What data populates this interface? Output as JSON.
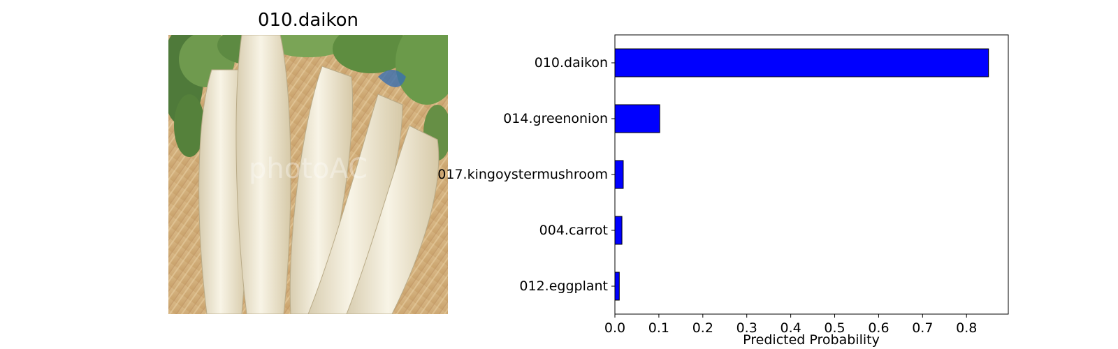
{
  "image_panel": {
    "title": "010.daikon",
    "watermark": "photoAC"
  },
  "chart_data": {
    "type": "bar",
    "orientation": "horizontal",
    "categories": [
      "010.daikon",
      "014.greenonion",
      "017.kingoystermushroom",
      "004.carrot",
      "012.eggplant"
    ],
    "values": [
      0.85,
      0.102,
      0.019,
      0.016,
      0.01
    ],
    "xlabel": "Predicted Probability",
    "ylabel": "",
    "xlim": [
      0,
      0.895
    ],
    "xticks": [
      "0.0",
      "0.1",
      "0.2",
      "0.3",
      "0.4",
      "0.5",
      "0.6",
      "0.7",
      "0.8"
    ],
    "bar_color": "#0000ff",
    "bar_edge_color": "#000000",
    "grid": false
  }
}
